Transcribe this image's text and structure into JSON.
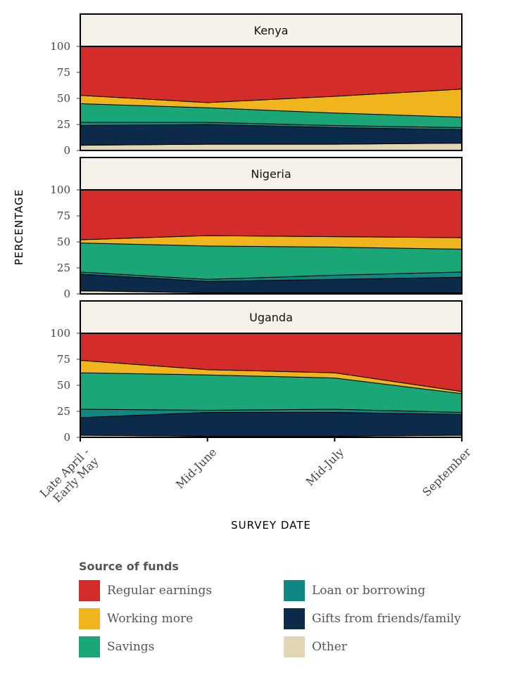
{
  "chart_data": {
    "type": "area",
    "stacked": true,
    "xlabel": "SURVEY DATE",
    "ylabel": "PERCENTAGE",
    "ylim": [
      0,
      100
    ],
    "yticks": [
      0,
      25,
      50,
      75,
      100
    ],
    "categories": [
      "Late April -\nEarly May",
      "Mid-June",
      "Mid-July",
      "September"
    ],
    "series_colors": {
      "Other": "#e3d6b5",
      "Gifts from friends/family": "#0c2a4a",
      "Loan or borrowing": "#0f8783",
      "Savings": "#1aa676",
      "Working more": "#f0b51d",
      "Regular earnings": "#d42c2a"
    },
    "panels": [
      {
        "title": "Kenya",
        "series": [
          {
            "name": "Other",
            "values": [
              5,
              6,
              6,
              7
            ]
          },
          {
            "name": "Gifts from friends/family",
            "values": [
              19,
              19,
              16,
              13
            ]
          },
          {
            "name": "Loan or borrowing",
            "values": [
              3,
              2,
              2,
              2
            ]
          },
          {
            "name": "Savings",
            "values": [
              18,
              14,
              12,
              10
            ]
          },
          {
            "name": "Working more",
            "values": [
              8,
              5,
              16,
              27
            ]
          },
          {
            "name": "Regular earnings",
            "values": [
              47,
              54,
              48,
              41
            ]
          }
        ]
      },
      {
        "title": "Nigeria",
        "series": [
          {
            "name": "Other",
            "values": [
              3,
              1,
              1,
              1
            ]
          },
          {
            "name": "Gifts from friends/family",
            "values": [
              16,
              11,
              13,
              15
            ]
          },
          {
            "name": "Loan or borrowing",
            "values": [
              2,
              2,
              4,
              5
            ]
          },
          {
            "name": "Savings",
            "values": [
              28,
              32,
              27,
              22
            ]
          },
          {
            "name": "Working more",
            "values": [
              3,
              10,
              10,
              11
            ]
          },
          {
            "name": "Regular earnings",
            "values": [
              48,
              44,
              45,
              46
            ]
          }
        ]
      },
      {
        "title": "Uganda",
        "series": [
          {
            "name": "Other",
            "values": [
              2,
              1,
              1,
              2
            ]
          },
          {
            "name": "Gifts from friends/family",
            "values": [
              17,
              23,
              23,
              20
            ]
          },
          {
            "name": "Loan or borrowing",
            "values": [
              8,
              2,
              3,
              2
            ]
          },
          {
            "name": "Savings",
            "values": [
              35,
              34,
              30,
              18
            ]
          },
          {
            "name": "Working more",
            "values": [
              12,
              5,
              5,
              2
            ]
          },
          {
            "name": "Regular earnings",
            "values": [
              26,
              35,
              38,
              56
            ]
          }
        ]
      }
    ],
    "legend": {
      "title": "Source of funds",
      "position": "bottom",
      "items": [
        {
          "label": "Regular earnings",
          "color": "#d42c2a"
        },
        {
          "label": "Loan or borrowing",
          "color": "#0f8783"
        },
        {
          "label": "Working more",
          "color": "#f0b51d"
        },
        {
          "label": "Gifts from friends/family",
          "color": "#0c2a4a"
        },
        {
          "label": "Savings",
          "color": "#1aa676"
        },
        {
          "label": "Other",
          "color": "#e3d6b5"
        }
      ]
    }
  }
}
